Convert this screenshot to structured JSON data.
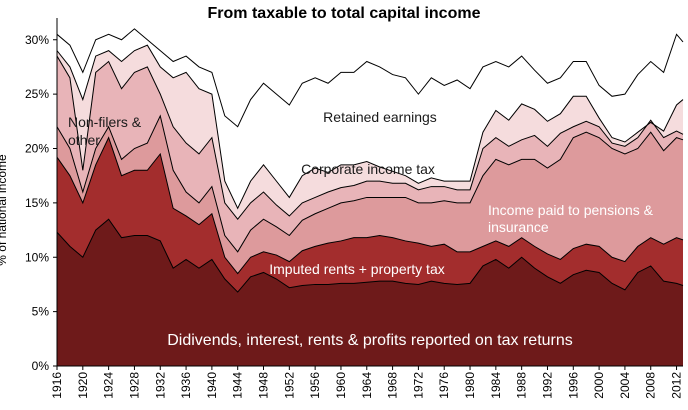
{
  "chart_data": {
    "type": "area",
    "title": "From taxable to total capital income",
    "xlabel": "",
    "ylabel": "% of national income",
    "xlim": [
      1916,
      2013
    ],
    "ylim": [
      0,
      32
    ],
    "y_ticks": [
      "0%",
      "5%",
      "10%",
      "15%",
      "20%",
      "25%",
      "30%"
    ],
    "x_ticks": [
      "1916",
      "1920",
      "1924",
      "1928",
      "1932",
      "1936",
      "1940",
      "1944",
      "1948",
      "1952",
      "1956",
      "1960",
      "1964",
      "1968",
      "1972",
      "1976",
      "1980",
      "1984",
      "1988",
      "1992",
      "1996",
      "2000",
      "2004",
      "2008",
      "2012"
    ],
    "x": [
      1916,
      1918,
      1920,
      1922,
      1924,
      1926,
      1928,
      1930,
      1932,
      1934,
      1936,
      1938,
      1940,
      1942,
      1944,
      1946,
      1948,
      1950,
      1952,
      1954,
      1956,
      1958,
      1960,
      1962,
      1964,
      1966,
      1968,
      1970,
      1972,
      1974,
      1976,
      1978,
      1980,
      1982,
      1984,
      1986,
      1988,
      1990,
      1992,
      1994,
      1996,
      1998,
      2000,
      2002,
      2004,
      2006,
      2008,
      2010,
      2012,
      2013
    ],
    "series": [
      {
        "name": "Didivends, interest, rents & profits reported on tax returns",
        "color": "#6e1a1a",
        "cumulative": [
          12.3,
          11.0,
          10.0,
          12.5,
          13.5,
          11.8,
          12.0,
          12.0,
          11.5,
          9.0,
          9.8,
          9.0,
          9.8,
          8.0,
          6.8,
          8.2,
          8.6,
          8.0,
          7.2,
          7.4,
          7.5,
          7.5,
          7.6,
          7.6,
          7.7,
          7.8,
          7.8,
          7.6,
          7.5,
          7.8,
          7.6,
          7.5,
          7.6,
          9.2,
          9.8,
          9.0,
          10.0,
          9.0,
          8.2,
          7.6,
          8.4,
          8.8,
          8.6,
          7.6,
          7.0,
          8.6,
          9.2,
          7.8,
          7.6,
          7.4
        ]
      },
      {
        "name": "Imputed rents + property tax",
        "color": "#a32d2d",
        "cumulative": [
          19.2,
          17.5,
          15.0,
          18.5,
          21.0,
          17.5,
          18.0,
          18.0,
          19.5,
          14.5,
          13.8,
          13.0,
          14.0,
          10.0,
          8.5,
          10.0,
          10.5,
          10.2,
          9.6,
          10.6,
          11.0,
          11.3,
          11.5,
          11.8,
          11.8,
          12.0,
          11.8,
          11.5,
          11.3,
          11.0,
          11.2,
          10.5,
          10.5,
          11.0,
          11.5,
          11.0,
          11.8,
          11.0,
          10.3,
          9.8,
          10.8,
          11.2,
          11.0,
          10.0,
          9.6,
          11.0,
          11.8,
          11.2,
          11.8,
          11.6
        ]
      },
      {
        "name": "Income paid to pensions & insurance",
        "color": "#dd9a9c",
        "cumulative": [
          22.0,
          20.0,
          16.0,
          20.0,
          22.0,
          19.0,
          20.0,
          20.5,
          23.0,
          18.0,
          16.0,
          15.0,
          16.5,
          12.0,
          10.5,
          12.5,
          13.5,
          12.8,
          12.0,
          13.4,
          14.0,
          14.5,
          15.0,
          15.2,
          15.5,
          15.5,
          15.5,
          15.5,
          15.0,
          15.0,
          15.2,
          15.0,
          15.0,
          17.5,
          19.0,
          18.5,
          19.0,
          19.0,
          18.2,
          19.0,
          21.0,
          21.5,
          21.0,
          20.0,
          19.5,
          20.0,
          21.5,
          19.8,
          21.0,
          20.8
        ]
      },
      {
        "name": "Non-filers & other",
        "color": "#e8b4b8",
        "cumulative": [
          28.5,
          26.5,
          18.0,
          27.0,
          28.0,
          25.5,
          27.0,
          27.5,
          25.0,
          22.0,
          20.5,
          19.5,
          21.0,
          15.0,
          13.5,
          15.0,
          16.0,
          14.8,
          13.8,
          15.0,
          15.5,
          16.0,
          16.4,
          16.6,
          17.0,
          17.0,
          16.8,
          16.8,
          16.2,
          16.5,
          16.5,
          16.2,
          16.2,
          20.0,
          21.0,
          20.2,
          20.8,
          21.2,
          20.2,
          21.4,
          22.0,
          22.5,
          22.0,
          20.5,
          20.2,
          21.0,
          22.6,
          21.0,
          21.6,
          21.3
        ]
      },
      {
        "name": "Corporate income tax",
        "color": "#f5dcdd",
        "cumulative": [
          29.0,
          27.5,
          24.5,
          28.5,
          29.0,
          28.0,
          29.0,
          29.5,
          27.5,
          26.5,
          27.0,
          25.5,
          25.0,
          17.0,
          14.5,
          17.0,
          18.5,
          17.0,
          15.5,
          17.5,
          18.2,
          17.8,
          18.5,
          18.5,
          18.8,
          18.3,
          17.9,
          17.5,
          16.8,
          17.3,
          17.0,
          17.0,
          17.0,
          21.5,
          23.5,
          22.6,
          24.1,
          23.6,
          22.5,
          23.2,
          24.8,
          24.8,
          22.8,
          21.0,
          20.6,
          21.5,
          22.4,
          21.6,
          24.0,
          24.5
        ]
      },
      {
        "name": "Retained earnings",
        "color": "#ffffff",
        "cumulative": [
          30.5,
          29.5,
          27.0,
          30.0,
          30.5,
          30.0,
          31.0,
          30.0,
          29.0,
          28.0,
          28.5,
          27.5,
          27.0,
          23.0,
          22.0,
          24.5,
          26.0,
          25.0,
          24.0,
          26.0,
          26.5,
          26.0,
          27.0,
          27.0,
          28.0,
          27.5,
          26.8,
          26.5,
          25.0,
          26.5,
          25.8,
          26.3,
          25.5,
          27.5,
          28.0,
          27.5,
          28.5,
          27.2,
          26.0,
          26.5,
          28.0,
          28.0,
          25.8,
          24.8,
          25.0,
          26.8,
          28.0,
          27.0,
          30.5,
          29.8
        ]
      }
    ],
    "annotations": [
      {
        "label": "Didivends, interest, rents & profits reported on tax returns",
        "color": "#ffffff"
      },
      {
        "label": "Imputed rents + property tax",
        "color": "#ffffff"
      },
      {
        "label": "Income paid to pensions & insurance",
        "color": "#ffffff"
      },
      {
        "label": "Non-filers & other",
        "color": "#1a1a1a"
      },
      {
        "label": "Corporate income tax",
        "color": "#1a1a1a"
      },
      {
        "label": "Retained earnings",
        "color": "#1a1a1a"
      }
    ],
    "grid": false,
    "legend": "none",
    "colors": {
      "axis": "#000000",
      "boundary": "#000000"
    }
  }
}
